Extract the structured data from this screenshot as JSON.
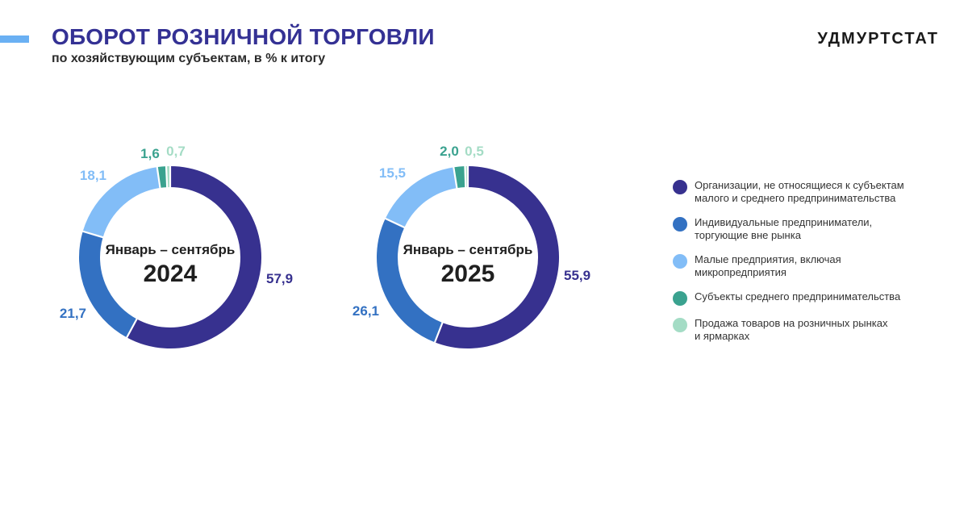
{
  "header": {
    "title": "ОБОРОТ РОЗНИЧНОЙ ТОРГОВЛИ",
    "subtitle": "по хозяйствующим субъектам, в % к итогу",
    "brand": "УДМУРТСТАТ"
  },
  "legend": [
    {
      "label": "Организации, не относящиеся к субъектам\nмалого и среднего предпринимательства",
      "color": "#37318f"
    },
    {
      "label": "Индивидуальные предприниматели,\nторгующие вне рынка",
      "color": "#3371c2"
    },
    {
      "label": "Малые предприятия, включая\nмикропредприятия",
      "color": "#82bdf7"
    },
    {
      "label": "Субъекты среднего предпринимательства",
      "color": "#3aa28f"
    },
    {
      "label": "Продажа товаров на розничных рынках\nи ярмарках",
      "color": "#a4dcc5"
    }
  ],
  "chart_data": [
    {
      "type": "pie",
      "center_label": "Январь – сентябрь",
      "center_year": "2024",
      "slices": [
        {
          "value": 57.9,
          "label": "57,9",
          "color": "#37318f"
        },
        {
          "value": 21.7,
          "label": "21,7",
          "color": "#3371c2"
        },
        {
          "value": 18.1,
          "label": "18,1",
          "color": "#82bdf7"
        },
        {
          "value": 1.6,
          "label": "1,6",
          "color": "#3aa28f"
        },
        {
          "value": 0.7,
          "label": "0,7",
          "color": "#a4dcc5"
        }
      ]
    },
    {
      "type": "pie",
      "center_label": "Январь – сентябрь",
      "center_year": "2025",
      "slices": [
        {
          "value": 55.9,
          "label": "55,9",
          "color": "#37318f"
        },
        {
          "value": 26.1,
          "label": "26,1",
          "color": "#3371c2"
        },
        {
          "value": 15.5,
          "label": "15,5",
          "color": "#82bdf7"
        },
        {
          "value": 2.0,
          "label": "2,0",
          "color": "#3aa28f"
        },
        {
          "value": 0.5,
          "label": "0,5",
          "color": "#a4dcc5"
        }
      ]
    }
  ]
}
